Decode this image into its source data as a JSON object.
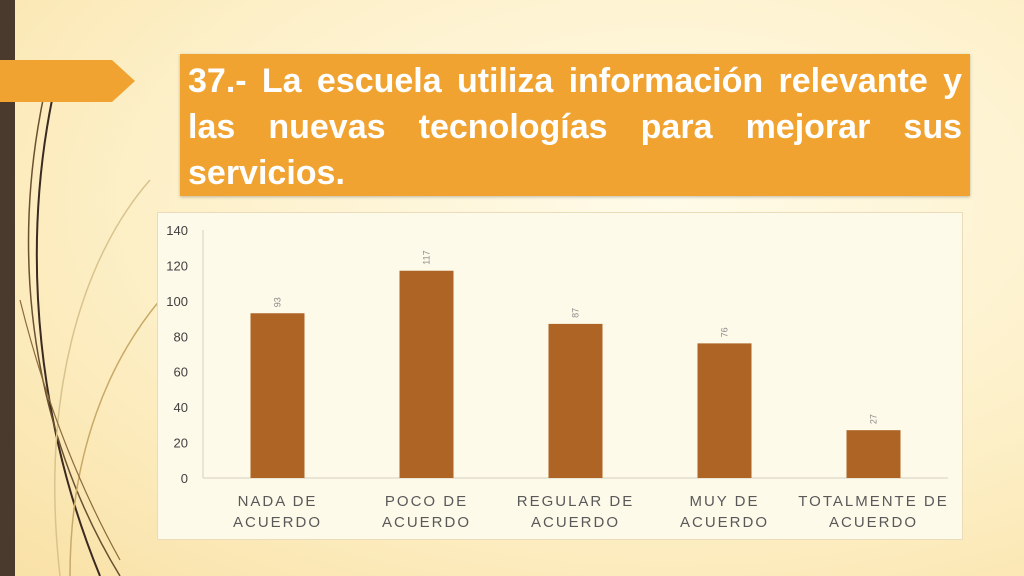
{
  "slide": {
    "title": "37.- La escuela utiliza información relevante y las nuevas tecnologías para mejorar sus servicios."
  },
  "colors": {
    "accent": "#f0a330",
    "bar": "#ad6424",
    "sidebar": "#4a3a2e"
  },
  "chart_data": {
    "type": "bar",
    "categories": [
      [
        "NADA DE",
        "ACUERDO"
      ],
      [
        "POCO DE",
        "ACUERDO"
      ],
      [
        "REGULAR DE",
        "ACUERDO"
      ],
      [
        "MUY DE",
        "ACUERDO"
      ],
      [
        "TOTALMENTE DE",
        "ACUERDO"
      ]
    ],
    "values": [
      93,
      117,
      87,
      76,
      27
    ],
    "data_labels": [
      "93",
      "117",
      "87",
      "76",
      "27"
    ],
    "yticks": [
      "0",
      "20",
      "40",
      "60",
      "80",
      "100",
      "120",
      "140"
    ],
    "ylim": [
      0,
      140
    ],
    "grid": false,
    "legend": "none"
  }
}
